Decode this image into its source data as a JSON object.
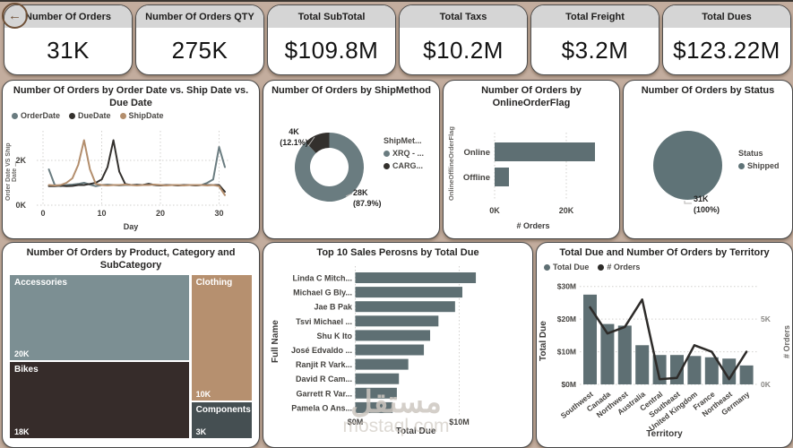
{
  "page": {
    "background": "#c3ad9e"
  },
  "back_button": {
    "glyph": "←",
    "name": "back"
  },
  "kpi_cards": [
    {
      "title": "Number Of Orders",
      "value": "31K"
    },
    {
      "title": "Number Of Orders QTY",
      "value": "275K"
    },
    {
      "title": "Total SubTotal",
      "value": "$109.8M"
    },
    {
      "title": "Total Taxs",
      "value": "$10.2M"
    },
    {
      "title": "Total Freight",
      "value": "$3.2M"
    },
    {
      "title": "Total Dues",
      "value": "$123.22M"
    }
  ],
  "watermark": {
    "line1": "مستقل",
    "line2": "mostaql.com"
  },
  "chart_data": [
    {
      "id": "orders-by-date",
      "type": "line",
      "title": "Number Of Orders by Order Date vs. Ship Date vs. Due Date",
      "xlabel": "Day",
      "ylabel": "Order Date VS Ship Date ...",
      "x_range": [
        0,
        31
      ],
      "y_max_k": 3.3,
      "x_ticks": [
        0,
        10,
        20,
        30
      ],
      "y_ticks": [
        {
          "v": 0,
          "label": "0K"
        },
        {
          "v": 2,
          "label": "2K"
        }
      ],
      "series": [
        {
          "name": "OrderDate",
          "color": "#6a7c80",
          "start_day": 1,
          "values_k": [
            1.6,
            0.9,
            0.85,
            0.9,
            0.92,
            0.95,
            1.0,
            0.92,
            0.85,
            0.9,
            0.92,
            0.9,
            0.88,
            0.9,
            0.9,
            0.92,
            0.9,
            0.96,
            0.9,
            0.88,
            0.9,
            0.9,
            0.88,
            0.9,
            0.9,
            0.88,
            0.9,
            1.0,
            1.15,
            2.6,
            1.7
          ]
        },
        {
          "name": "DueDate",
          "color": "#33302d",
          "start_day": 1,
          "values_k": [
            0.85,
            0.85,
            0.87,
            0.85,
            0.86,
            0.9,
            0.9,
            0.95,
            1.0,
            1.15,
            1.7,
            2.9,
            1.5,
            0.95,
            0.9,
            0.9,
            0.9,
            0.95,
            0.9,
            0.88,
            0.9,
            0.9,
            0.88,
            0.9,
            0.9,
            0.88,
            0.9,
            0.9,
            0.9,
            0.9,
            0.6
          ]
        },
        {
          "name": "ShipDate",
          "color": "#b38e6d",
          "start_day": 1,
          "values_k": [
            0.9,
            0.88,
            0.9,
            1.0,
            1.2,
            1.8,
            2.9,
            1.6,
            0.95,
            0.9,
            0.88,
            0.9,
            0.9,
            0.92,
            0.9,
            0.88,
            0.9,
            0.9,
            0.92,
            0.9,
            0.88,
            0.9,
            0.9,
            0.88,
            0.9,
            0.9,
            0.9,
            0.88,
            0.9,
            0.85,
            0.45
          ]
        }
      ]
    },
    {
      "id": "orders-by-shipmethod",
      "type": "donut",
      "title": "Number Of Orders by ShipMethod",
      "legend_title": "ShipMet...",
      "slices": [
        {
          "name": "XRQ - ...",
          "color": "#6a7c80",
          "pct": 87.9,
          "value_label": "28K",
          "pct_label": "(87.9%)"
        },
        {
          "name": "CARG...",
          "color": "#33302d",
          "pct": 12.1,
          "value_label": "4K",
          "pct_label": "(12.1%)"
        }
      ]
    },
    {
      "id": "orders-by-onlineflag",
      "type": "bar",
      "title": "Number Of Orders by OnlineOrderFlag",
      "xlabel": "# Orders",
      "ylabel": "OnlineOfflineOrderFlag",
      "categories": [
        "Online",
        "Offline"
      ],
      "values_k": [
        28,
        4
      ],
      "x_ticks": [
        {
          "v": 0,
          "label": "0K"
        },
        {
          "v": 20,
          "label": "20K"
        }
      ],
      "bar_color": "#5e6f73"
    },
    {
      "id": "orders-by-status",
      "type": "pie",
      "title": "Number Of Orders by Status",
      "legend_title": "Status",
      "slices": [
        {
          "name": "Shipped",
          "color": "#5f7377",
          "pct": 100,
          "value_label": "31K",
          "pct_label": "(100%)"
        }
      ]
    },
    {
      "id": "orders-by-category",
      "type": "treemap",
      "title": "Number Of Orders by Product, Category and SubCategory",
      "tiles": [
        {
          "name": "Accessories",
          "value_k": 20,
          "value_label": "20K",
          "color": "#7c8f93",
          "column": "left"
        },
        {
          "name": "Bikes",
          "value_k": 18,
          "value_label": "18K",
          "color": "#362c2a",
          "column": "left"
        },
        {
          "name": "Clothing",
          "value_k": 10,
          "value_label": "10K",
          "color": "#b6906f",
          "column": "right"
        },
        {
          "name": "Components",
          "value_k": 3,
          "value_label": "3K",
          "color": "#454f52",
          "column": "right"
        }
      ]
    },
    {
      "id": "top10-salespersons",
      "type": "bar",
      "title": "Top 10 Sales Perosns by Total Due",
      "xlabel": "Total Due",
      "ylabel": "Full Name",
      "categories": [
        "Linda C Mitch...",
        "Michael G Bly...",
        "Jae B Pak",
        "Tsvi Michael ...",
        "Shu K Ito",
        "José Edvaldo ...",
        "Ranjit R Vark...",
        "David R Cam...",
        "Garrett R Var...",
        "Pamela O Ans..."
      ],
      "values_m": [
        11.6,
        10.3,
        9.6,
        8.0,
        7.2,
        6.6,
        5.1,
        4.2,
        4.0,
        3.6
      ],
      "x_ticks": [
        {
          "v": 0,
          "label": "$0M"
        },
        {
          "v": 10,
          "label": "$10M"
        }
      ],
      "bar_color": "#5e6f73"
    },
    {
      "id": "territory-combo",
      "type": "combo",
      "title": "Total Due and Number Of Orders by Territory",
      "xlabel": "Territory",
      "y_left_label": "Total Due",
      "y_right_label": "# Orders",
      "categories": [
        "Southwest",
        "Canada",
        "Northwest",
        "Australia",
        "Central",
        "Southeast",
        "United Kingdom",
        "France",
        "Northeast",
        "Germany"
      ],
      "bar_series": {
        "name": "Total Due",
        "color": "#5e6f73",
        "values_m": [
          27.5,
          18.5,
          18,
          12,
          9,
          9,
          8.7,
          8.3,
          7.9,
          5.8
        ]
      },
      "line_series": {
        "name": "# Orders",
        "color": "#2d2b29",
        "values_k": [
          5.9,
          3.9,
          4.4,
          6.5,
          0.4,
          0.5,
          3.0,
          2.5,
          0.4,
          2.5
        ]
      },
      "y_left_ticks": [
        {
          "v": 0,
          "label": "$0M"
        },
        {
          "v": 10,
          "label": "$10M"
        },
        {
          "v": 20,
          "label": "$20M"
        },
        {
          "v": 30,
          "label": "$30M"
        }
      ],
      "y_right_ticks": [
        {
          "v": 0,
          "label": "0K"
        },
        {
          "v": 5,
          "label": "5K"
        }
      ]
    }
  ]
}
